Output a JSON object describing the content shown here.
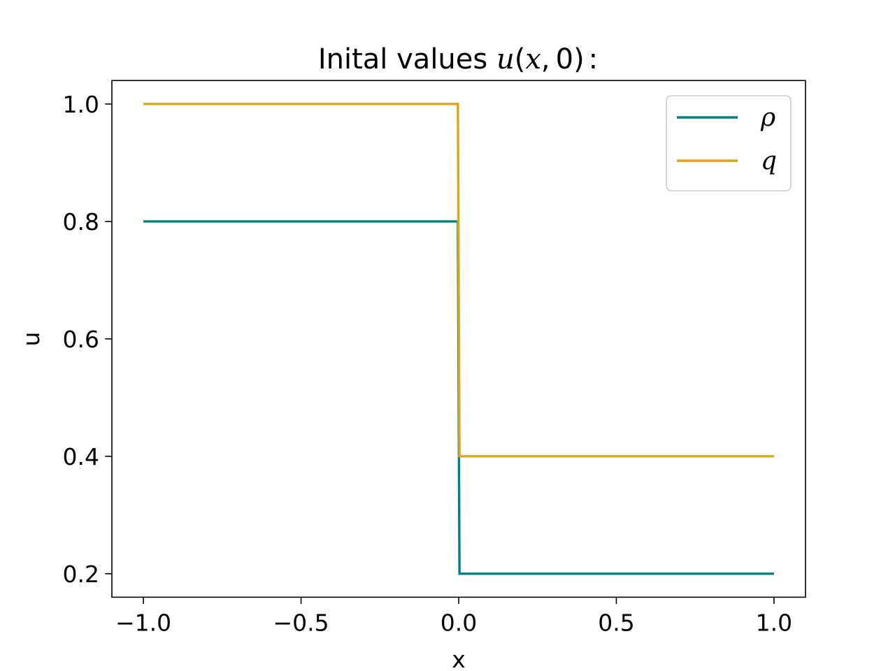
{
  "chart_data": {
    "type": "line",
    "title": "Inital values u(x,0):",
    "title_parts": {
      "prefix": "Inital values ",
      "func": "u",
      "open": "(",
      "arg1": "x",
      "comma": ",",
      "arg2": "0",
      "close": ")",
      "colon": ":"
    },
    "xlabel": "x",
    "ylabel": "u",
    "xlim": [
      -1.1,
      1.1
    ],
    "ylim": [
      0.16,
      1.04
    ],
    "xticks": [
      -1.0,
      -0.5,
      0.0,
      0.5,
      1.0
    ],
    "xtick_labels": [
      "−1.0",
      "−0.5",
      "0.0",
      "0.5",
      "1.0"
    ],
    "yticks": [
      0.2,
      0.4,
      0.6,
      0.8,
      1.0
    ],
    "ytick_labels": [
      "0.2",
      "0.4",
      "0.6",
      "0.8",
      "1.0"
    ],
    "grid": false,
    "legend_position": "top-right",
    "series": [
      {
        "name": "ρ",
        "color": "#008080",
        "x": [
          -1.0,
          -0.0025,
          0.0025,
          1.0
        ],
        "y": [
          0.8,
          0.8,
          0.2,
          0.2
        ]
      },
      {
        "name": "q",
        "color": "#DAA520",
        "x": [
          -1.0,
          -0.0025,
          0.0025,
          1.0
        ],
        "y": [
          1.0,
          1.0,
          0.4,
          0.4
        ]
      }
    ]
  }
}
